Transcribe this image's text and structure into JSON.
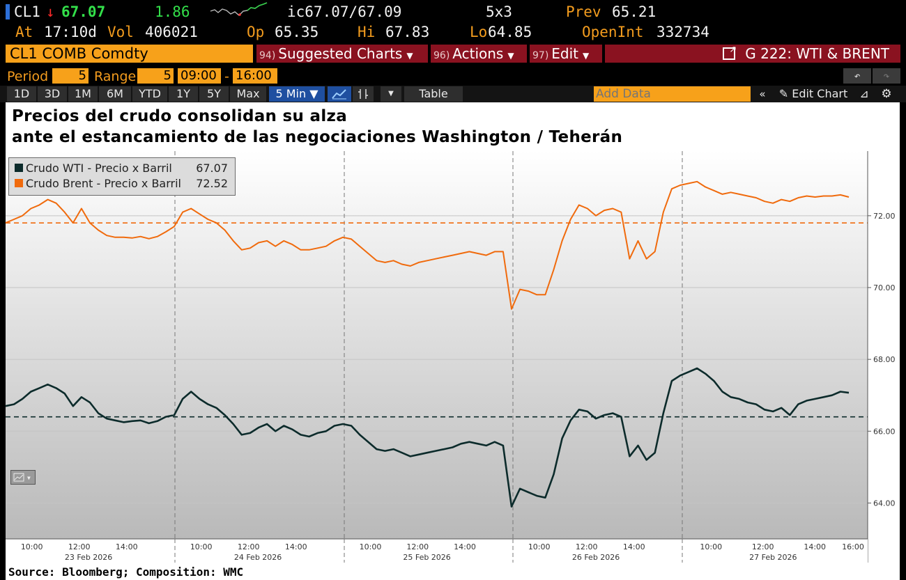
{
  "quote": {
    "ticker": "CL1",
    "arrow": "↓",
    "last": "67.07",
    "change": "1.86",
    "bid_ask": "ic67.07/67.09",
    "size": "5x3",
    "prev_label": "Prev",
    "prev": "65.21",
    "at_label": "At",
    "at_time": "17:10d",
    "vol_label": "Vol",
    "vol": "406021",
    "op_label": "Op",
    "op": "65.35",
    "hi_label": "Hi",
    "hi": "67.83",
    "lo_label": "Lo",
    "lo": "64.85",
    "oi_label": "OpenInt",
    "oi": "332734"
  },
  "toolbar": {
    "security": "CL1 COMB Comdty",
    "suggested_num": "94)",
    "suggested_label": "Suggested Charts",
    "actions_num": "96)",
    "actions_label": "Actions",
    "edit_num": "97)",
    "edit_label": "Edit",
    "chart_id": "G 222: WTI & BRENT"
  },
  "period_bar": {
    "period_label": "Period",
    "period_value": "5",
    "range_label": "Range",
    "range_value": "5",
    "start_time": "09:00",
    "end_time": "16:00",
    "sep": "-"
  },
  "tabs": {
    "items": [
      "1D",
      "3D",
      "1M",
      "6M",
      "YTD",
      "1Y",
      "5Y",
      "Max"
    ],
    "selected": "5 Min ▼",
    "table": "Table",
    "add_data_placeholder": "Add Data",
    "edit_chart": "Edit Chart"
  },
  "footer": {
    "source": "Source: Bloomberg; Composition: WMC"
  },
  "colors": {
    "wti": "#0c2b2b",
    "brent": "#f06a0c",
    "accent": "#f7a11a",
    "menu": "#8a1220"
  },
  "chart_data": {
    "type": "line",
    "title": [
      "Precios del crudo consolidan su alza",
      "ante el estancamiento de las negociaciones Washington / Teherán"
    ],
    "ylim": [
      63,
      73.8
    ],
    "yticks": [
      "72.00",
      "70.00",
      "68.00",
      "66.00",
      "64.00"
    ],
    "ytick_values": [
      72,
      70,
      68,
      66,
      64
    ],
    "days": [
      "23 Feb 2026",
      "24 Feb 2026",
      "25 Feb 2026",
      "26 Feb 2026",
      "27 Feb 2026"
    ],
    "xticks": [
      "10:00",
      "12:00",
      "14:00",
      "10:00",
      "12:00",
      "14:00",
      "10:00",
      "12:00",
      "14:00",
      "10:00",
      "12:00",
      "14:00",
      "10:00",
      "12:00",
      "14:00",
      "16:00"
    ],
    "legend_position": "top-left",
    "grid": true,
    "series": [
      {
        "name": "Crudo WTI - Precio x Barril",
        "last": "67.07",
        "reference": 66.4,
        "values": [
          66.7,
          66.75,
          66.9,
          67.1,
          67.2,
          67.3,
          67.2,
          67.05,
          66.7,
          66.95,
          66.8,
          66.5,
          66.35,
          66.3,
          66.25,
          66.28,
          66.3,
          66.22,
          66.28,
          66.4,
          66.45,
          66.9,
          67.1,
          66.9,
          66.75,
          66.65,
          66.45,
          66.2,
          65.9,
          65.95,
          66.1,
          66.2,
          66.0,
          66.15,
          66.05,
          65.9,
          65.85,
          65.95,
          66.0,
          66.15,
          66.2,
          66.15,
          65.9,
          65.7,
          65.5,
          65.45,
          65.5,
          65.4,
          65.3,
          65.35,
          65.4,
          65.45,
          65.5,
          65.55,
          65.65,
          65.7,
          65.65,
          65.6,
          65.7,
          65.6,
          63.9,
          64.4,
          64.3,
          64.2,
          64.15,
          64.8,
          65.8,
          66.3,
          66.6,
          66.55,
          66.35,
          66.45,
          66.5,
          66.4,
          65.3,
          65.6,
          65.2,
          65.4,
          66.5,
          67.4,
          67.55,
          67.65,
          67.75,
          67.6,
          67.4,
          67.1,
          66.95,
          66.9,
          66.8,
          66.75,
          66.6,
          66.55,
          66.65,
          66.45,
          66.75,
          66.85,
          66.9,
          66.95,
          67.0,
          67.1,
          67.07
        ]
      },
      {
        "name": "Crudo Brent - Precio x Barril",
        "last": "72.52",
        "reference": 71.8,
        "values": [
          71.8,
          71.9,
          72.0,
          72.2,
          72.3,
          72.45,
          72.35,
          72.1,
          71.8,
          72.2,
          71.8,
          71.6,
          71.45,
          71.4,
          71.4,
          71.38,
          71.42,
          71.36,
          71.42,
          71.55,
          71.7,
          72.1,
          72.2,
          72.05,
          71.9,
          71.8,
          71.6,
          71.3,
          71.05,
          71.1,
          71.25,
          71.3,
          71.15,
          71.3,
          71.2,
          71.05,
          71.05,
          71.1,
          71.15,
          71.3,
          71.4,
          71.35,
          71.15,
          70.95,
          70.75,
          70.7,
          70.75,
          70.65,
          70.6,
          70.7,
          70.75,
          70.8,
          70.85,
          70.9,
          70.95,
          71.0,
          70.95,
          70.9,
          71.0,
          71.0,
          69.4,
          69.95,
          69.9,
          69.8,
          69.8,
          70.5,
          71.3,
          71.9,
          72.3,
          72.2,
          72.0,
          72.15,
          72.2,
          72.1,
          70.8,
          71.3,
          70.8,
          71.0,
          72.1,
          72.75,
          72.85,
          72.9,
          72.95,
          72.8,
          72.7,
          72.6,
          72.65,
          72.6,
          72.55,
          72.5,
          72.4,
          72.35,
          72.45,
          72.4,
          72.5,
          72.55,
          72.52,
          72.55,
          72.55,
          72.58,
          72.52
        ]
      }
    ]
  }
}
